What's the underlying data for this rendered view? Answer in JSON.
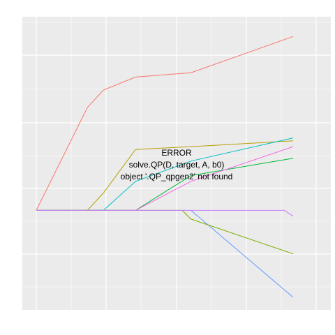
{
  "chart_data": {
    "type": "line",
    "title": "",
    "xlabel": "",
    "ylabel": "",
    "grid": true,
    "legend": "none",
    "xlim": [
      0,
      1
    ],
    "ylim": [
      -0.3,
      0.62
    ],
    "series": [
      {
        "color": "#F8766D",
        "x": [
          0,
          0.175,
          0.23,
          0.34,
          0.53,
          0.88
        ],
        "y": [
          0,
          0.355,
          0.415,
          0.46,
          0.475,
          0.6
        ]
      },
      {
        "color": "#B79F00",
        "x": [
          0,
          0.175,
          0.23,
          0.34,
          0.53,
          0.88
        ],
        "y": [
          0,
          0,
          0.06,
          0.21,
          0.22,
          0.24
        ]
      },
      {
        "color": "#00BA38",
        "x": [
          0,
          0.34,
          0.53,
          0.88
        ],
        "y": [
          0,
          0,
          0.12,
          0.18
        ]
      },
      {
        "color": "#00BFC4",
        "x": [
          0,
          0.23,
          0.34,
          0.53,
          0.88
        ],
        "y": [
          0,
          0,
          0.1,
          0.17,
          0.25
        ]
      },
      {
        "color": "#619CFF",
        "x": [
          0,
          0.53,
          0.88
        ],
        "y": [
          0,
          0,
          -0.3
        ]
      },
      {
        "color": "#F564E3",
        "x": [
          0,
          0.34,
          0.53,
          0.88
        ],
        "y": [
          0,
          0,
          0.1,
          0.22
        ]
      },
      {
        "color": "#7CAE00",
        "x": [
          0,
          0.5,
          0.53,
          0.88
        ],
        "y": [
          0,
          0,
          -0.03,
          -0.15
        ]
      },
      {
        "color": "#C77CFF",
        "x": [
          0,
          0.85,
          0.88
        ],
        "y": [
          0,
          0,
          -0.02
        ]
      }
    ]
  },
  "error": {
    "line1": "ERROR",
    "line2": "solve.QP(D, target, A, b0)",
    "line3": "object '.QP_qpgen2' not found"
  }
}
